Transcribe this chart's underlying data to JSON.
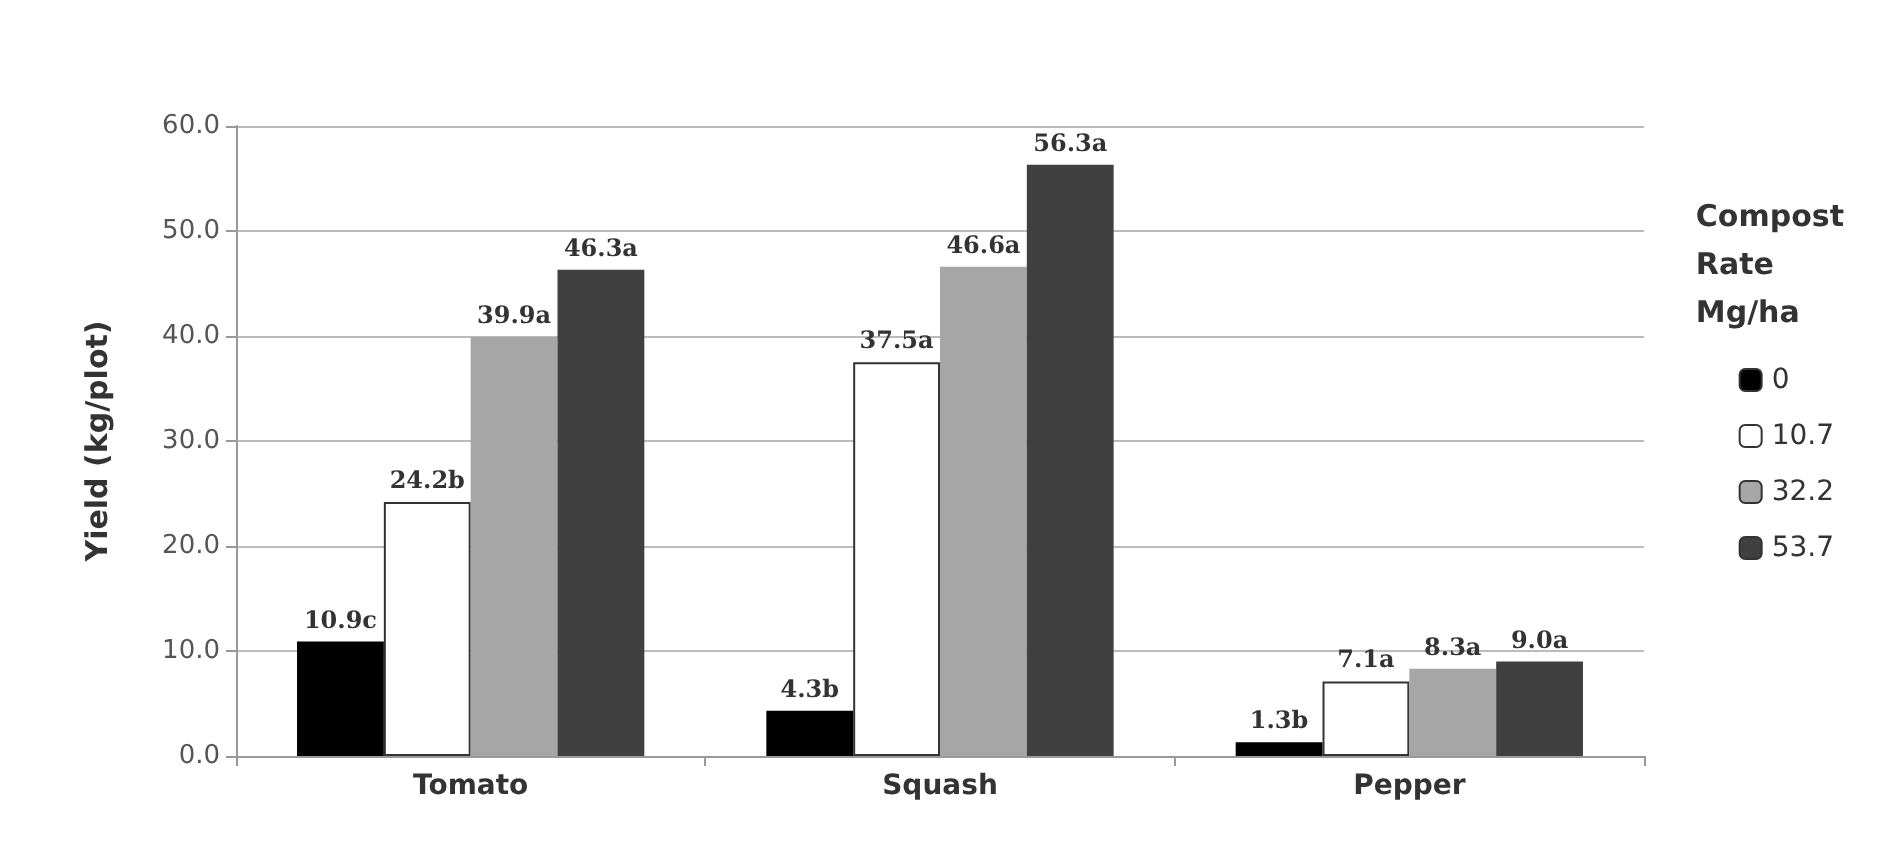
{
  "chart_data": {
    "type": "bar",
    "ylabel": "Yield (kg/plot)",
    "legend_title": "Compost\nRate\nMg/ha",
    "categories": [
      "Tomato",
      "Squash",
      "Pepper"
    ],
    "series": [
      {
        "name": "0",
        "color": "#000000",
        "values": [
          10.9,
          4.3,
          1.3
        ],
        "value_labels": [
          "10.9c",
          "4.3b",
          "1.3b"
        ]
      },
      {
        "name": "10.7",
        "color": "#ffffff",
        "values": [
          24.2,
          37.5,
          7.1
        ],
        "value_labels": [
          "24.2b",
          "37.5a",
          "7.1a"
        ]
      },
      {
        "name": "32.2",
        "color": "#a6a6a6",
        "values": [
          39.9,
          46.6,
          8.3
        ],
        "value_labels": [
          "39.9a",
          "46.6a",
          "8.3a"
        ]
      },
      {
        "name": "53.7",
        "color": "#404040",
        "values": [
          46.3,
          56.3,
          9.0
        ],
        "value_labels": [
          "46.3a",
          "56.3a",
          "9.0a"
        ]
      }
    ],
    "ylim": [
      0,
      60
    ],
    "yticks": [
      {
        "value": 0,
        "label": "0.0"
      },
      {
        "value": 10,
        "label": "10.0"
      },
      {
        "value": 20,
        "label": "20.0"
      },
      {
        "value": 30,
        "label": "30.0"
      },
      {
        "value": 40,
        "label": "40.0"
      },
      {
        "value": 50,
        "label": "50.0"
      },
      {
        "value": 60,
        "label": "60.0"
      }
    ],
    "grid": "y",
    "legend": "right"
  }
}
